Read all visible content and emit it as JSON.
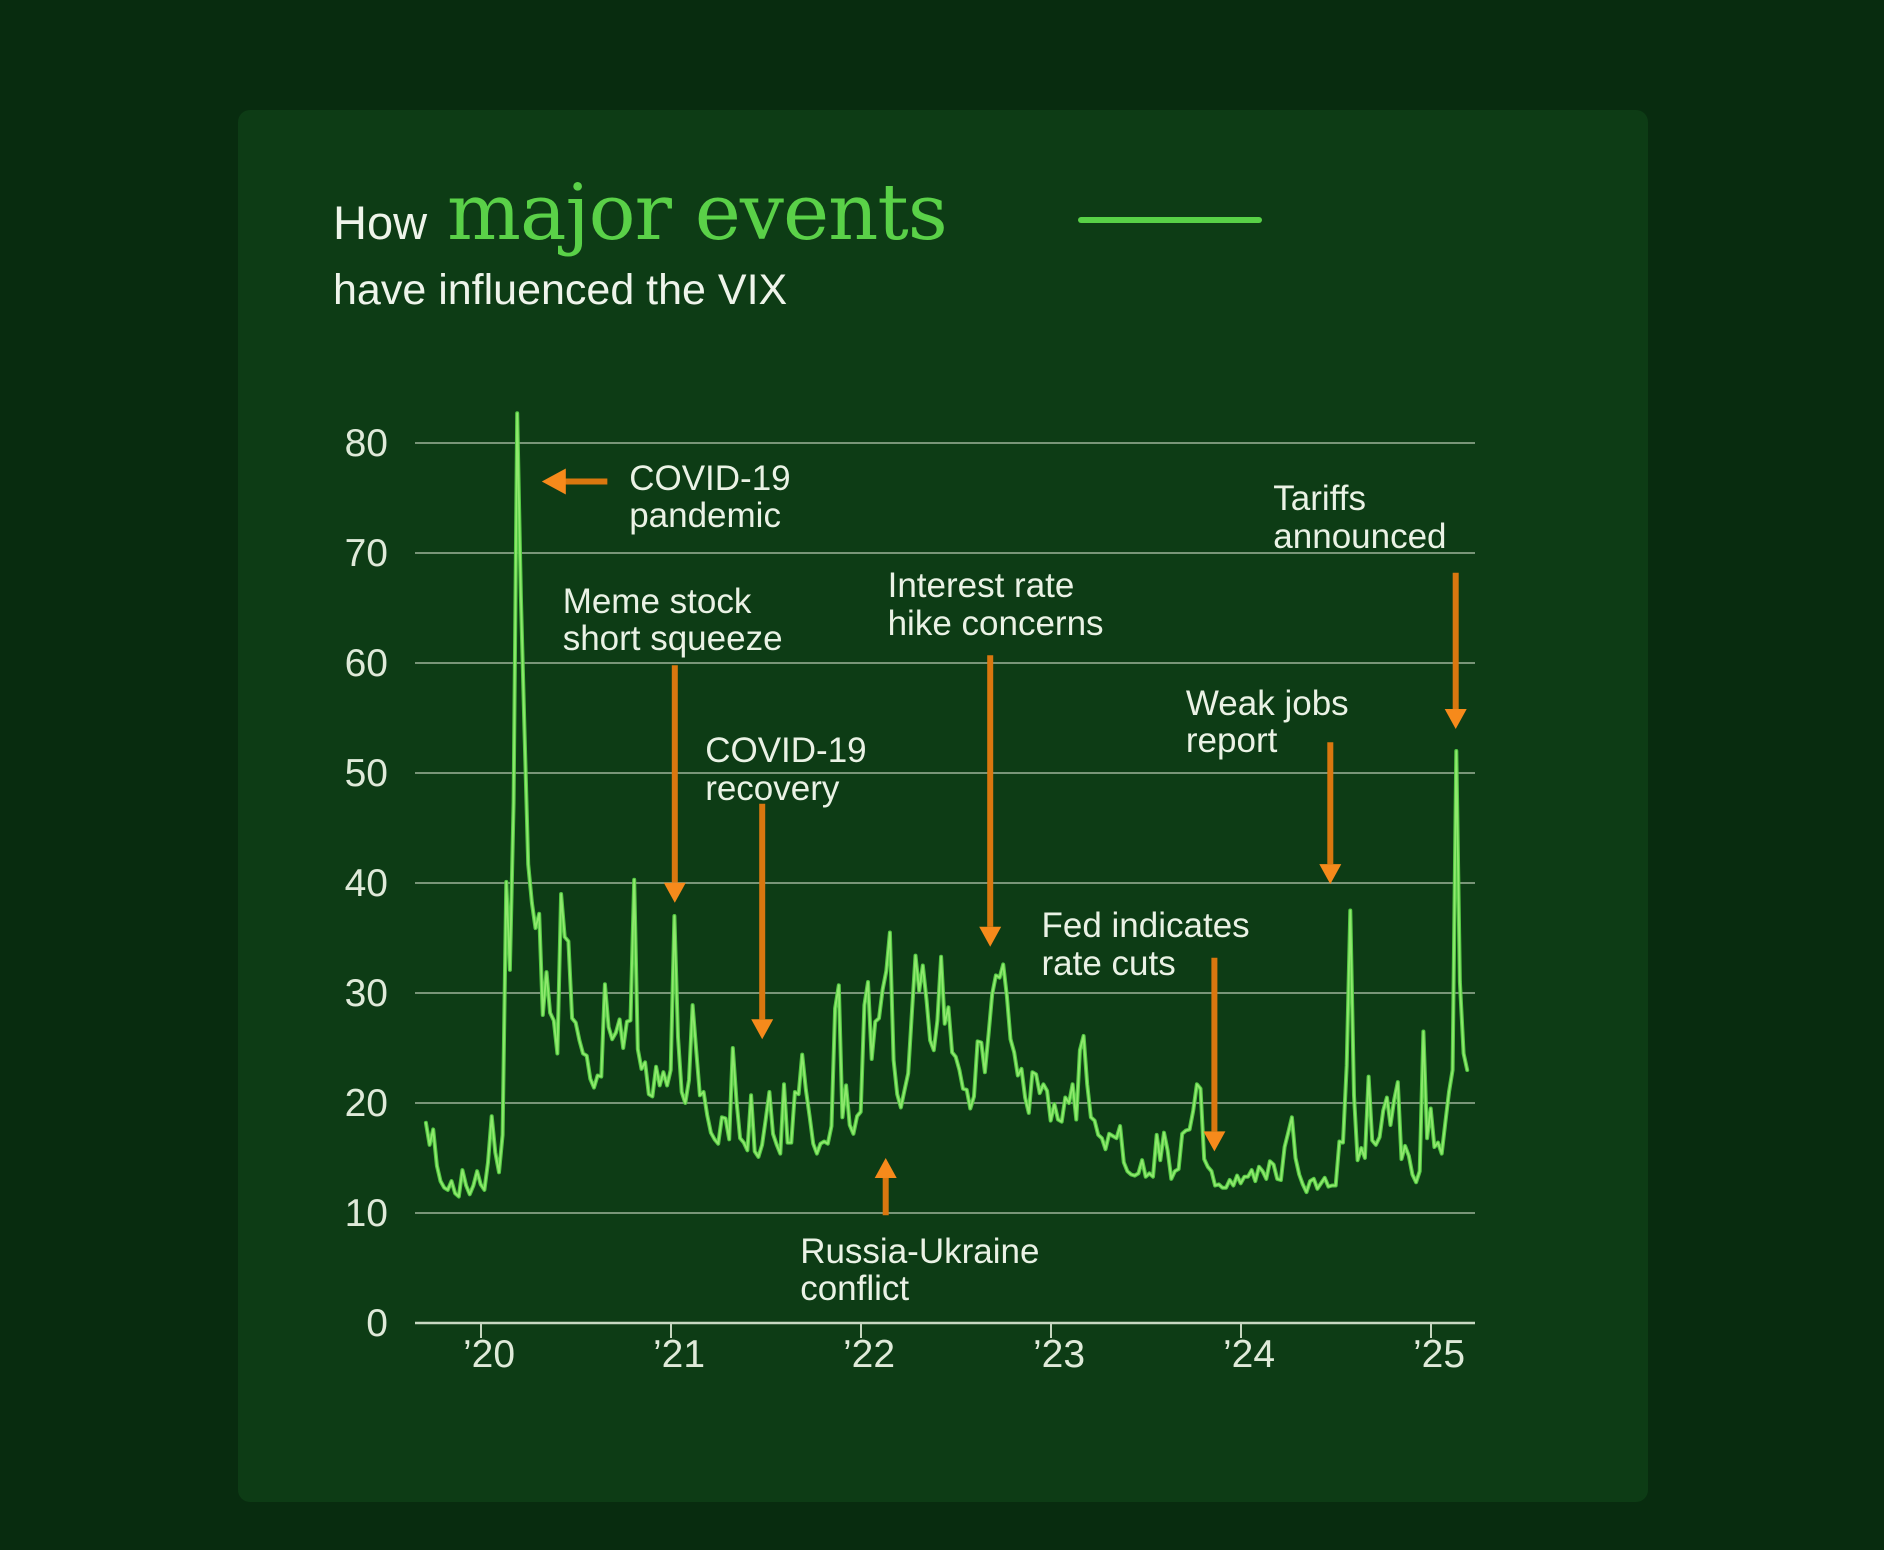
{
  "header": {
    "prefix": "How",
    "highlight": "major events",
    "subtitle": "have influenced the VIX"
  },
  "colors": {
    "background": "#082c0f",
    "card": "#0d3c15",
    "accent_green": "#5ad148",
    "line_green": "#53c843",
    "line_green_core": "#8fe96d",
    "gridline": "#b7c8b1",
    "axis_text": "#dfead9",
    "annotation_text": "#eaf2e5",
    "arrow_orange": "#d9770f",
    "arrow_head_orange": "#f68a1b"
  },
  "chart_data": {
    "type": "line",
    "title": "How major events have influenced the VIX",
    "series_name": "VIX",
    "ylim": [
      0,
      80
    ],
    "grid": "horizontal",
    "legend_position": "none",
    "y_ticks": [
      0,
      10,
      20,
      30,
      40,
      50,
      60,
      70,
      80
    ],
    "x_ticks": [
      {
        "year": 2020,
        "label": "’20"
      },
      {
        "year": 2021,
        "label": "’21"
      },
      {
        "year": 2022,
        "label": "’22"
      },
      {
        "year": 2023,
        "label": "’23"
      },
      {
        "year": 2024,
        "label": "’24"
      },
      {
        "year": 2025,
        "label": "’25"
      }
    ],
    "x_start_year": 2019.71,
    "x_step_years": 0.0192308,
    "values": [
      18.2,
      16.2,
      17.6,
      14.3,
      12.9,
      12.3,
      12.1,
      12.9,
      11.8,
      11.5,
      13.9,
      12.5,
      11.7,
      12.5,
      13.8,
      12.6,
      12.1,
      14.6,
      18.8,
      15.5,
      13.7,
      17.1,
      40.1,
      32.1,
      47.3,
      82.7,
      66.0,
      53.5,
      41.7,
      38.2,
      35.9,
      37.2,
      28.0,
      31.9,
      28.2,
      27.5,
      24.5,
      39.0,
      35.1,
      34.7,
      27.7,
      27.3,
      25.7,
      24.5,
      24.3,
      22.2,
      21.4,
      22.5,
      22.4,
      30.8,
      26.9,
      25.8,
      26.4,
      27.6,
      25.0,
      27.4,
      27.5,
      40.3,
      24.9,
      23.1,
      23.7,
      20.8,
      20.6,
      23.3,
      21.6,
      22.8,
      21.6,
      23.0,
      37.0,
      26.0,
      21.0,
      20.0,
      22.1,
      28.9,
      24.7,
      20.7,
      21.0,
      18.9,
      17.3,
      16.7,
      16.3,
      18.7,
      18.6,
      16.7,
      25.0,
      20.2,
      16.8,
      16.4,
      15.7,
      20.7,
      15.6,
      15.1,
      16.2,
      18.5,
      21.0,
      17.2,
      16.2,
      15.4,
      21.7,
      16.4,
      16.4,
      21.0,
      20.8,
      24.4,
      21.2,
      18.8,
      16.3,
      15.4,
      16.3,
      16.5,
      16.3,
      17.9,
      28.6,
      30.7,
      18.7,
      21.6,
      18.0,
      17.2,
      18.8,
      19.2,
      28.9,
      31.0,
      24.0,
      27.4,
      27.7,
      30.3,
      32.0,
      35.5,
      23.9,
      20.8,
      19.6,
      21.2,
      22.7,
      28.2,
      33.4,
      30.2,
      32.5,
      29.4,
      25.7,
      24.8,
      27.5,
      33.3,
      27.2,
      28.7,
      24.6,
      24.2,
      23.0,
      21.3,
      21.2,
      19.5,
      20.6,
      25.6,
      25.5,
      22.8,
      26.3,
      29.9,
      31.6,
      31.4,
      32.6,
      29.7,
      25.8,
      24.6,
      22.5,
      23.1,
      20.5,
      19.1,
      22.8,
      22.6,
      20.9,
      21.7,
      21.1,
      18.4,
      19.9,
      18.5,
      18.3,
      20.5,
      20.0,
      21.7,
      18.5,
      24.8,
      26.1,
      21.7,
      18.7,
      18.4,
      17.1,
      16.8,
      15.8,
      17.2,
      17.0,
      16.8,
      17.9,
      14.6,
      13.8,
      13.5,
      13.4,
      13.6,
      14.8,
      13.3,
      13.6,
      13.3,
      17.1,
      14.8,
      17.3,
      15.7,
      13.1,
      13.8,
      14.0,
      17.2,
      17.5,
      17.6,
      19.3,
      21.7,
      21.3,
      14.9,
      14.2,
      13.8,
      12.5,
      12.6,
      12.3,
      12.3,
      13.0,
      12.5,
      13.4,
      12.7,
      13.3,
      13.3,
      13.9,
      12.9,
      14.2,
      13.8,
      13.1,
      14.7,
      14.4,
      13.1,
      13.0,
      16.0,
      17.3,
      18.7,
      15.0,
      13.5,
      12.6,
      11.9,
      12.9,
      13.1,
      12.2,
      12.7,
      13.2,
      12.4,
      12.5,
      12.5,
      16.5,
      16.4,
      23.4,
      37.5,
      20.7,
      14.8,
      15.9,
      15.0,
      22.4,
      16.6,
      16.2,
      16.9,
      19.3,
      20.5,
      18.0,
      20.3,
      21.9,
      14.9,
      16.1,
      15.2,
      13.5,
      12.8,
      13.8,
      26.5,
      16.8,
      19.5,
      16.0,
      16.4,
      15.4,
      18.2,
      21.0,
      23.0,
      52.0,
      31.0,
      24.5,
      23.0
    ],
    "annotations": [
      {
        "id": "covid-pandemic",
        "lines": [
          "COVID-19",
          "pandemic"
        ],
        "text_year": 2020.78,
        "text_value": 78.5,
        "arrow": {
          "dir": "left",
          "value": 76.5,
          "year_from": 2020.665,
          "year_to": 2020.32
        }
      },
      {
        "id": "meme-stock",
        "lines": [
          "Meme stock",
          "short squeeze"
        ],
        "text_year": 2020.43,
        "text_value": 67.3,
        "arrow": {
          "dir": "down",
          "year": 2021.02,
          "value_from": 59.8,
          "value_to": 38.2
        }
      },
      {
        "id": "covid-recovery",
        "lines": [
          "COVID-19",
          "recovery"
        ],
        "text_year": 2021.18,
        "text_value": 53.7,
        "arrow": {
          "dir": "down",
          "year": 2021.48,
          "value_from": 47.2,
          "value_to": 25.8
        }
      },
      {
        "id": "rate-hike",
        "lines": [
          "Interest rate",
          "hike concerns"
        ],
        "text_year": 2022.14,
        "text_value": 68.7,
        "arrow": {
          "dir": "down",
          "year": 2022.68,
          "value_from": 60.7,
          "value_to": 34.2
        }
      },
      {
        "id": "russia-ukraine",
        "lines": [
          "Russia-Ukraine",
          "conflict"
        ],
        "text_year": 2021.68,
        "text_value": 8.2,
        "arrow": {
          "dir": "up",
          "year": 2022.13,
          "value_from": 9.8,
          "value_to": 15.0
        }
      },
      {
        "id": "fed-rate-cuts",
        "lines": [
          "Fed indicates",
          "rate cuts"
        ],
        "text_year": 2022.95,
        "text_value": 37.8,
        "arrow": {
          "dir": "down",
          "year": 2023.86,
          "value_from": 33.2,
          "value_to": 15.6
        }
      },
      {
        "id": "weak-jobs",
        "lines": [
          "Weak jobs",
          "report"
        ],
        "text_year": 2023.71,
        "text_value": 58.0,
        "arrow": {
          "dir": "down",
          "year": 2024.47,
          "value_from": 52.8,
          "value_to": 39.9
        }
      },
      {
        "id": "tariffs",
        "lines": [
          "Tariffs",
          "announced"
        ],
        "text_year": 2024.17,
        "text_value": 76.6,
        "arrow": {
          "dir": "down",
          "year": 2025.13,
          "value_from": 68.2,
          "value_to": 54.0
        }
      }
    ]
  }
}
